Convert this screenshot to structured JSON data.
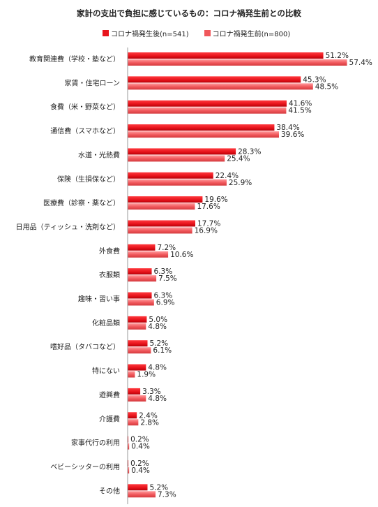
{
  "chart_data": {
    "type": "bar",
    "orientation": "horizontal",
    "title": "家計の支出で負担に感じているもの：コロナ禍発生前との比較",
    "categories": [
      "教育関連費（学校・塾など）",
      "家賃・住宅ローン",
      "食費（米・野菜など）",
      "通信費（スマホなど）",
      "水道・光熱費",
      "保険（生損保など）",
      "医療費（診察・薬など）",
      "日用品（ティッシュ・洗剤など）",
      "外食費",
      "衣服類",
      "趣味・習い事",
      "化粧品類",
      "嗜好品（タバコなど）",
      "特にない",
      "遊興費",
      "介護費",
      "家事代行の利用",
      "ベビーシッターの利用",
      "その他"
    ],
    "series": [
      {
        "name": "コロナ禍発生後(n=541)",
        "color": "#e8141c",
        "values": [
          51.2,
          45.3,
          41.6,
          38.4,
          28.3,
          22.4,
          19.6,
          17.7,
          7.2,
          6.3,
          6.3,
          5.0,
          5.2,
          4.8,
          3.3,
          2.4,
          0.2,
          0.2,
          5.2
        ]
      },
      {
        "name": "コロナ禍発生前(n=800)",
        "color": "#f0575b",
        "values": [
          57.4,
          48.5,
          41.5,
          39.6,
          25.4,
          25.9,
          17.6,
          16.9,
          10.6,
          7.5,
          6.9,
          4.8,
          6.1,
          1.9,
          4.8,
          2.8,
          0.4,
          0.4,
          7.3
        ]
      }
    ],
    "value_suffix": "%",
    "xlim": [
      0,
      60
    ],
    "grid": false,
    "legend_position": "top"
  }
}
